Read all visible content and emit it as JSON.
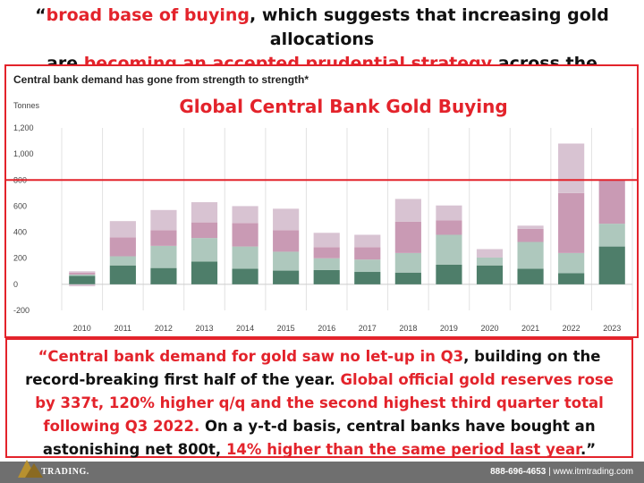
{
  "top_quote": {
    "open": "“",
    "red1": "broad base of buying",
    "text1": ", which suggests that increasing gold allocations",
    "text2": "are ",
    "red2": "becoming an accepted prudential strategy",
    "text3": " across the segment.”"
  },
  "chart_data": {
    "type": "bar",
    "stacked": true,
    "title": "Central bank demand has gone from strength to strength*",
    "overlay_title": "Global Central Bank Gold Buying",
    "ylabel": "Tonnes",
    "ylim": [
      -200,
      1200
    ],
    "yticks": [
      -200,
      0,
      200,
      400,
      600,
      800,
      1000,
      1200
    ],
    "ytick_labels": [
      "-200",
      "0",
      "200",
      "400",
      "600",
      "800",
      "1,000",
      "1,200"
    ],
    "categories": [
      "2010",
      "2011",
      "2012",
      "2013",
      "2014",
      "2015",
      "2016",
      "2017",
      "2018",
      "2019",
      "2020",
      "2021",
      "2022",
      "2023"
    ],
    "series": [
      {
        "color": "#4e7e6a",
        "values": [
          65,
          145,
          125,
          175,
          120,
          105,
          110,
          95,
          90,
          150,
          145,
          120,
          85,
          290
        ]
      },
      {
        "color": "#aec8bd",
        "values": [
          10,
          70,
          170,
          180,
          170,
          145,
          90,
          95,
          150,
          230,
          60,
          205,
          155,
          175
        ]
      },
      {
        "color": "#c99ab4",
        "values": [
          15,
          145,
          120,
          120,
          180,
          165,
          85,
          95,
          240,
          110,
          0,
          100,
          460,
          335
        ]
      },
      {
        "color": "#d8c3d2",
        "values": [
          10,
          125,
          155,
          155,
          130,
          165,
          110,
          95,
          175,
          115,
          65,
          25,
          380,
          0
        ]
      },
      {
        "color": "#d8c3d2",
        "negative": true,
        "values": [
          -15,
          0,
          0,
          0,
          0,
          0,
          0,
          0,
          0,
          0,
          0,
          0,
          0,
          0
        ]
      }
    ],
    "reference_line": {
      "value": 800,
      "color": "#e3232b"
    },
    "grid": "vertical",
    "legend": "none"
  },
  "bottom_quote": {
    "red1": "“Central bank demand for gold saw no let-up in Q3",
    "text1": ", building on the record-breaking first half of the year. ",
    "red2": "Global official gold reserves rose by 337t, 120% higher q/q and the second highest third quarter total following Q3 2022.",
    "text2": " On a y-t-d basis, central banks have bought an astonishing net 800t, ",
    "red3": "14% higher than the same period last year",
    "text3": ".”"
  },
  "footer": {
    "brand": "TRADING.",
    "phone": "888-696-4653",
    "separator": " | ",
    "website": "www.itmtrading.com"
  },
  "colors": {
    "accent": "#e3232b",
    "footer_bg": "#6f6f6f"
  }
}
